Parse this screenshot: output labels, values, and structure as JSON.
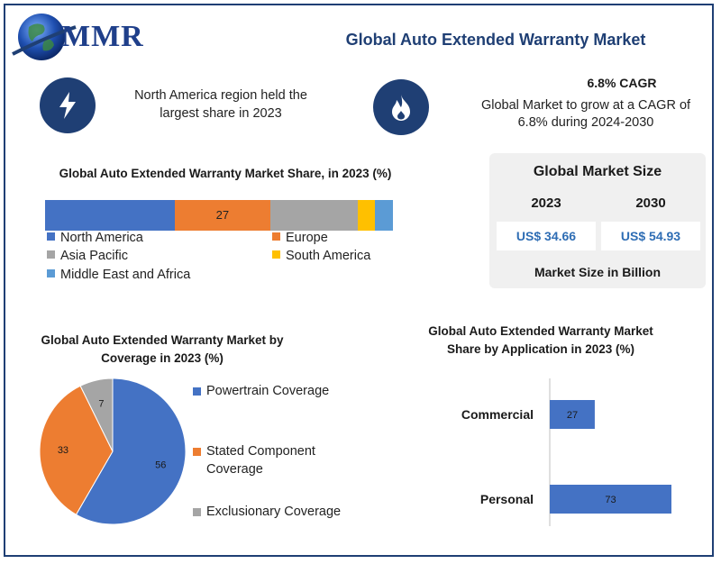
{
  "header": {
    "brand": "MMR",
    "title": "Global Auto Extended Warranty Market"
  },
  "highlights": {
    "region_note": "North America region held the largest share in 2023",
    "cagr_title": "6.8% CAGR",
    "cagr_text": "Global Market to grow at a CAGR of 6.8% during 2024-2030"
  },
  "market_size": {
    "title": "Global Market Size",
    "year1": "2023",
    "year2": "2030",
    "value1": "US$ 34.66",
    "value2": "US$ 54.93",
    "unit": "Market Size in Billion"
  },
  "icons": {
    "left": "lightning-icon",
    "right": "flame-icon"
  },
  "colors": {
    "navy": "#1f3f74",
    "north_america": "#4472c4",
    "europe": "#ed7d31",
    "asia_pacific": "#a5a5a5",
    "south_america": "#ffc000",
    "mea": "#5b9bd5"
  },
  "chart_data": [
    {
      "type": "bar",
      "orientation": "stacked-horizontal",
      "title": "Global Auto Extended Warranty Market Share, in 2023 (%)",
      "series": [
        {
          "name": "North America",
          "value": 37,
          "color": "#4472c4",
          "label": ""
        },
        {
          "name": "Europe",
          "value": 27,
          "color": "#ed7d31",
          "label": "27"
        },
        {
          "name": "Asia Pacific",
          "value": 25,
          "color": "#a5a5a5",
          "label": ""
        },
        {
          "name": "South America",
          "value": 5,
          "color": "#ffc000",
          "label": ""
        },
        {
          "name": "Middle East and Africa",
          "value": 5,
          "color": "#5b9bd5",
          "label": ""
        }
      ],
      "legend": "bottom"
    },
    {
      "type": "pie",
      "title": "Global Auto Extended Warranty Market by Coverage in 2023 (%)",
      "slices": [
        {
          "name": "Powertrain Coverage",
          "value": 56,
          "color": "#4472c4"
        },
        {
          "name": "Stated Component Coverage",
          "value": 33,
          "color": "#ed7d31"
        },
        {
          "name": "Exclusionary Coverage",
          "value": 7,
          "color": "#a5a5a5"
        }
      ],
      "legend": "right"
    },
    {
      "type": "bar",
      "orientation": "horizontal",
      "title": "Global Auto Extended Warranty Market Share by Application in 2023 (%)",
      "categories": [
        "Commercial",
        "Personal"
      ],
      "values": [
        27,
        73
      ],
      "color": "#4472c4"
    }
  ]
}
